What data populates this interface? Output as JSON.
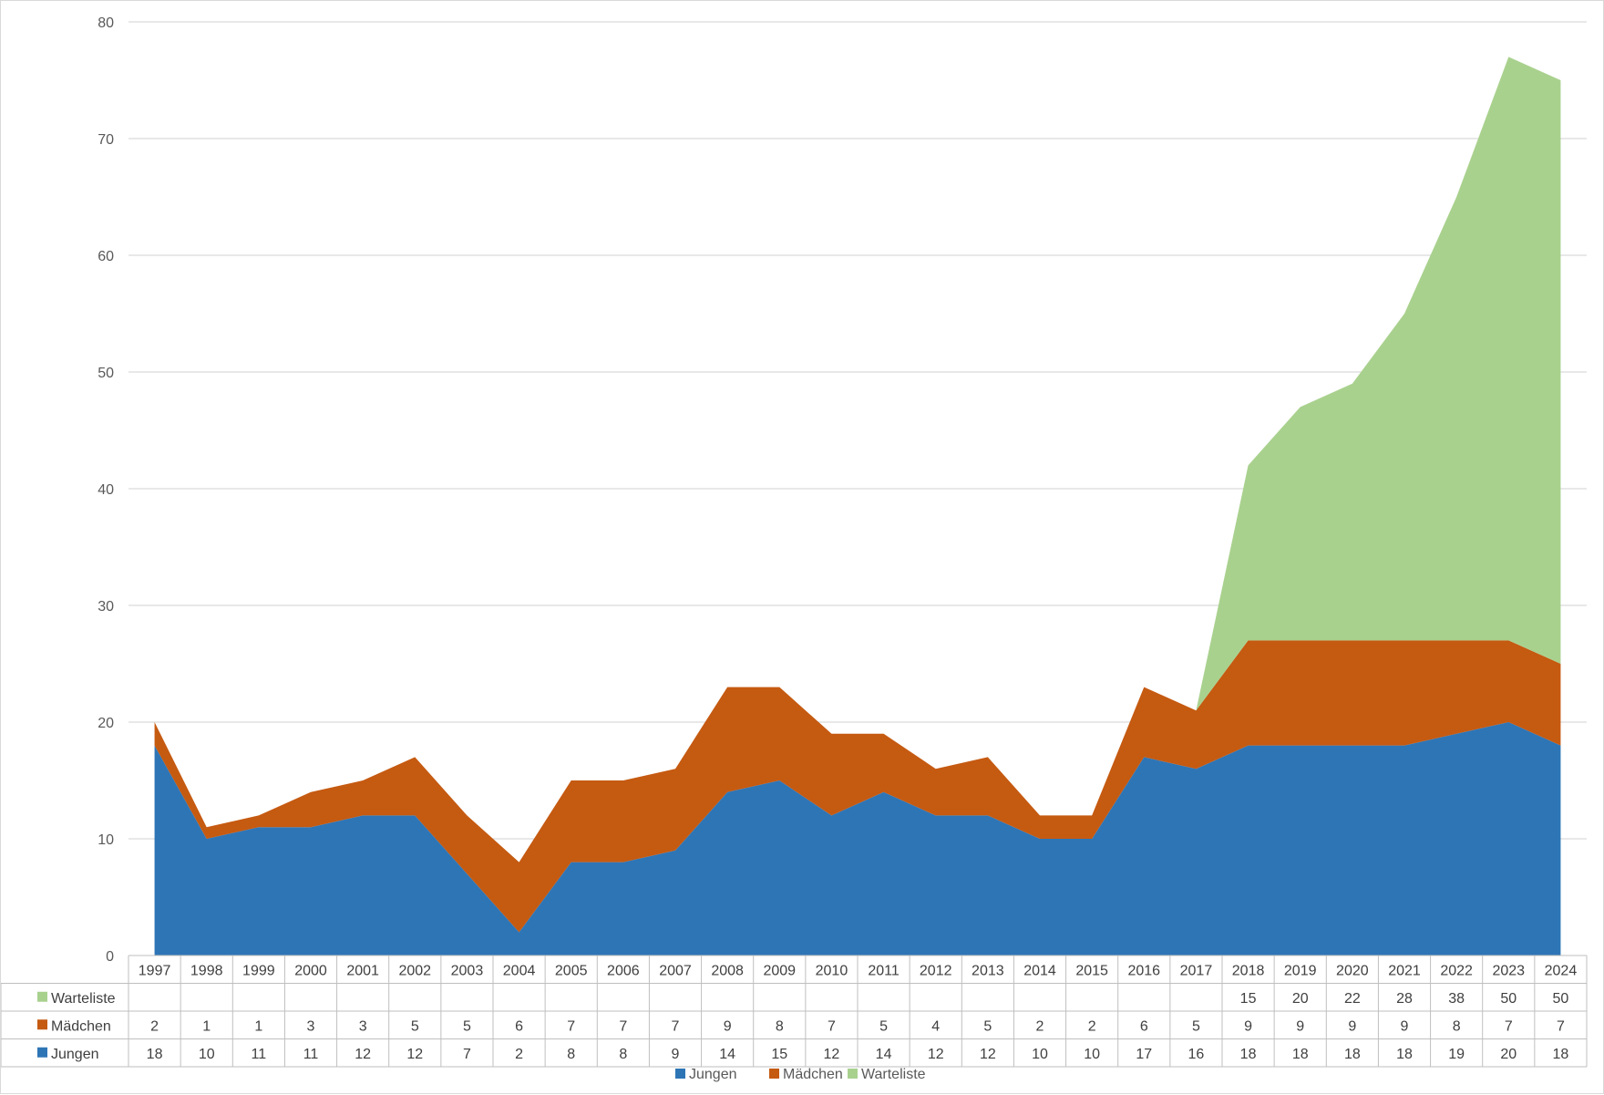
{
  "chart_data": {
    "type": "area",
    "stacked": true,
    "categories": [
      "1997",
      "1998",
      "1999",
      "2000",
      "2001",
      "2002",
      "2003",
      "2004",
      "2005",
      "2006",
      "2007",
      "2008",
      "2009",
      "2010",
      "2011",
      "2012",
      "2013",
      "2014",
      "2015",
      "2016",
      "2017",
      "2018",
      "2019",
      "2020",
      "2021",
      "2022",
      "2023",
      "2024"
    ],
    "series": [
      {
        "name": "Jungen",
        "color": "#2e75b6",
        "values": [
          18,
          10,
          11,
          11,
          12,
          12,
          7,
          2,
          8,
          8,
          9,
          14,
          15,
          12,
          14,
          12,
          12,
          10,
          10,
          17,
          16,
          18,
          18,
          18,
          18,
          19,
          20,
          18
        ]
      },
      {
        "name": "Mädchen",
        "color": "#c55a11",
        "values": [
          2,
          1,
          1,
          3,
          3,
          5,
          5,
          6,
          7,
          7,
          7,
          9,
          8,
          7,
          5,
          4,
          5,
          2,
          2,
          6,
          5,
          9,
          9,
          9,
          9,
          8,
          7,
          7
        ]
      },
      {
        "name": "Warteliste",
        "color": "#a9d18e",
        "values": [
          null,
          null,
          null,
          null,
          null,
          null,
          null,
          null,
          null,
          null,
          null,
          null,
          null,
          null,
          null,
          null,
          null,
          null,
          null,
          null,
          null,
          15,
          20,
          22,
          28,
          38,
          50,
          50
        ]
      }
    ],
    "ylim": [
      0,
      80
    ],
    "yticks": [
      0,
      10,
      20,
      30,
      40,
      50,
      60,
      70,
      80
    ],
    "grid": true,
    "data_table": true,
    "legend": "bottom"
  }
}
